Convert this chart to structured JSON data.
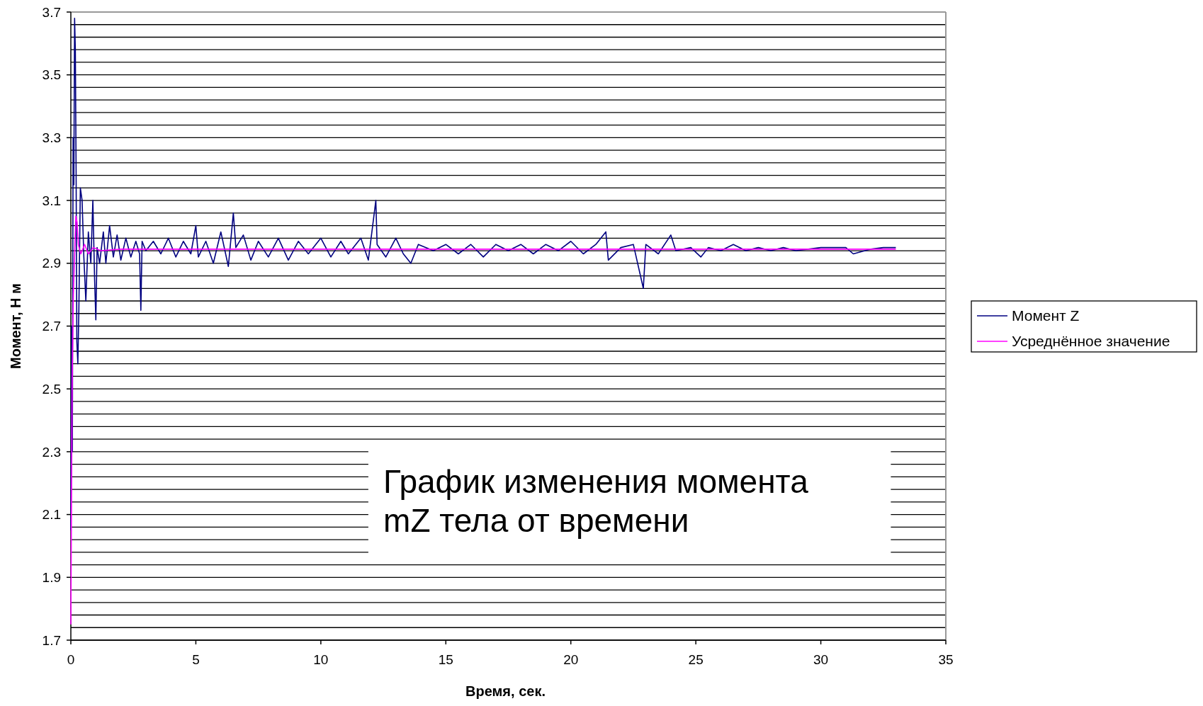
{
  "chart_data": {
    "type": "line",
    "title": "График изменения момента mZ тела от времени",
    "xlabel": "Время, сек.",
    "ylabel": "Момент, Н м",
    "xlim": [
      0,
      35
    ],
    "xticks": [
      0,
      5,
      10,
      15,
      20,
      25,
      30,
      35
    ],
    "ylim": [
      1.7,
      3.7
    ],
    "yticks": [
      1.7,
      {
        "value": 1.74,
        "label": null
      },
      {
        "value": 1.78,
        "label": null
      },
      {
        "value": 1.82,
        "label": null
      },
      {
        "value": 1.86,
        "label": null
      },
      1.9,
      {
        "value": 1.94,
        "label": null
      },
      {
        "value": 1.98,
        "label": null
      },
      {
        "value": 2.02,
        "label": null
      },
      {
        "value": 2.06,
        "label": null
      },
      2.1,
      {
        "value": 2.14,
        "label": null
      },
      {
        "value": 2.18,
        "label": null
      },
      {
        "value": 2.22,
        "label": null
      },
      {
        "value": 2.26,
        "label": null
      },
      2.3,
      {
        "value": 2.34,
        "label": null
      },
      {
        "value": 2.38,
        "label": null
      },
      {
        "value": 2.42,
        "label": null
      },
      {
        "value": 2.46,
        "label": null
      },
      2.5,
      {
        "value": 2.54,
        "label": null
      },
      {
        "value": 2.58,
        "label": null
      },
      {
        "value": 2.62,
        "label": null
      },
      {
        "value": 2.66,
        "label": null
      },
      2.7,
      {
        "value": 2.74,
        "label": null
      },
      {
        "value": 2.78,
        "label": null
      },
      {
        "value": 2.82,
        "label": null
      },
      {
        "value": 2.86,
        "label": null
      },
      2.9,
      {
        "value": 2.94,
        "label": null
      },
      {
        "value": 2.98,
        "label": null
      },
      {
        "value": 3.02,
        "label": null
      },
      {
        "value": 3.06,
        "label": null
      },
      3.1,
      {
        "value": 3.14,
        "label": null
      },
      {
        "value": 3.18,
        "label": null
      },
      {
        "value": 3.22,
        "label": null
      },
      {
        "value": 3.26,
        "label": null
      },
      3.3,
      {
        "value": 3.34,
        "label": null
      },
      {
        "value": 3.38,
        "label": null
      },
      {
        "value": 3.42,
        "label": null
      },
      {
        "value": 3.46,
        "label": null
      },
      3.5,
      {
        "value": 3.54,
        "label": null
      },
      {
        "value": 3.58,
        "label": null
      },
      {
        "value": 3.62,
        "label": null
      },
      {
        "value": 3.66,
        "label": null
      },
      3.7
    ],
    "grid": "y",
    "legend": "right",
    "marker": "none",
    "line_style": "solid",
    "series": [
      {
        "name": "Момент Z",
        "color": "#000080",
        "x": [
          0,
          0.03,
          0.06,
          0.09,
          0.12,
          0.15,
          0.18,
          0.21,
          0.24,
          0.28,
          0.32,
          0.38,
          0.45,
          0.52,
          0.6,
          0.7,
          0.8,
          0.88,
          0.95,
          1.0,
          1.05,
          1.15,
          1.3,
          1.4,
          1.55,
          1.7,
          1.85,
          2.0,
          2.2,
          2.4,
          2.6,
          2.75,
          2.8,
          2.85,
          3.0,
          3.3,
          3.6,
          3.9,
          4.2,
          4.5,
          4.8,
          5.0,
          5.1,
          5.4,
          5.7,
          6.0,
          6.3,
          6.5,
          6.6,
          6.9,
          7.2,
          7.5,
          7.9,
          8.3,
          8.7,
          9.1,
          9.5,
          10.0,
          10.4,
          10.8,
          11.1,
          11.6,
          11.9,
          12.2,
          12.25,
          12.6,
          13.0,
          13.3,
          13.6,
          13.9,
          14.5,
          15.0,
          15.5,
          16.0,
          16.5,
          17.0,
          17.5,
          18.0,
          18.5,
          19.0,
          19.5,
          20.0,
          20.5,
          21.0,
          21.4,
          21.5,
          22.0,
          22.5,
          22.9,
          23.0,
          23.5,
          24.0,
          24.2,
          24.8,
          25.2,
          25.5,
          26.0,
          26.5,
          27.0,
          27.5,
          28.0,
          28.5,
          29.0,
          30.0,
          31.0,
          31.3,
          32.0,
          32.5,
          33.0
        ],
        "values": [
          2.05,
          2.7,
          2.3,
          3.3,
          3.15,
          3.68,
          3.58,
          3.2,
          2.65,
          2.58,
          2.75,
          3.14,
          3.1,
          2.92,
          2.78,
          3.0,
          2.9,
          3.1,
          2.85,
          2.72,
          2.95,
          2.9,
          3.0,
          2.9,
          3.02,
          2.92,
          2.99,
          2.91,
          2.98,
          2.92,
          2.97,
          2.93,
          2.75,
          2.97,
          2.94,
          2.97,
          2.93,
          2.98,
          2.92,
          2.97,
          2.93,
          3.02,
          2.92,
          2.97,
          2.9,
          3.0,
          2.89,
          3.06,
          2.95,
          2.99,
          2.91,
          2.97,
          2.92,
          2.98,
          2.91,
          2.97,
          2.93,
          2.98,
          2.92,
          2.97,
          2.93,
          2.98,
          2.91,
          3.1,
          2.96,
          2.92,
          2.98,
          2.93,
          2.9,
          2.96,
          2.94,
          2.96,
          2.93,
          2.96,
          2.92,
          2.96,
          2.94,
          2.96,
          2.93,
          2.96,
          2.94,
          2.97,
          2.93,
          2.96,
          3.0,
          2.91,
          2.95,
          2.96,
          2.82,
          2.96,
          2.93,
          2.99,
          2.94,
          2.95,
          2.92,
          2.95,
          2.94,
          2.96,
          2.94,
          2.95,
          2.94,
          2.95,
          2.94,
          2.95,
          2.95,
          2.93,
          2.945,
          2.95,
          2.95
        ]
      },
      {
        "name": "Усреднённое значение",
        "color": "#ff00ff",
        "x": [
          0,
          0.05,
          0.1,
          0.2,
          0.25,
          0.3,
          0.4,
          0.55,
          0.7,
          0.9,
          1.2,
          2,
          33
        ],
        "values": [
          1.75,
          2.5,
          2.8,
          3.05,
          3.03,
          2.96,
          2.93,
          2.96,
          2.93,
          2.95,
          2.94,
          2.945,
          2.945
        ]
      }
    ]
  }
}
